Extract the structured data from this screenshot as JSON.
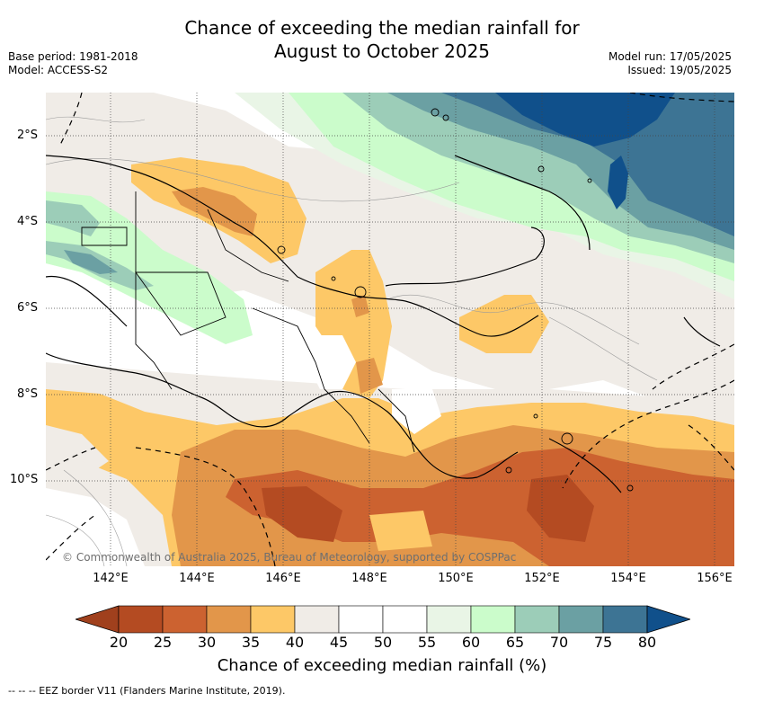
{
  "title_line1": "Chance of exceeding the median rainfall for",
  "title_line2": "August to October 2025",
  "base_period": "Base period: 1981-2018",
  "model": "Model: ACCESS-S2",
  "model_run": "Model run: 17/05/2025",
  "issued": "Issued: 19/05/2025",
  "copyright": "© Commonwealth of Australia 2025, Bureau of Meteorology, supported by COSPPac",
  "lat_labels": [
    "2°S",
    "4°S",
    "6°S",
    "8°S",
    "10°S"
  ],
  "lon_labels": [
    "142°E",
    "144°E",
    "146°E",
    "148°E",
    "150°E",
    "152°E",
    "154°E",
    "156°E"
  ],
  "colorbar": {
    "ticks": [
      "20",
      "25",
      "30",
      "35",
      "40",
      "45",
      "50",
      "55",
      "60",
      "65",
      "70",
      "75",
      "80"
    ],
    "colors": [
      "#a0401d",
      "#b44b22",
      "#cc6230",
      "#e2964a",
      "#fdc867",
      "#f0ece7",
      "#ffffff",
      "#ffffff",
      "#e9f5e6",
      "#cbfccb",
      "#9ccdb8",
      "#6ba0a3",
      "#3d7494",
      "#10508b"
    ],
    "title": "Chance of exceeding median rainfall (%)"
  },
  "footnote": "--  --  -- EEZ border V11 (Flanders Marine Institute, 2019)."
}
